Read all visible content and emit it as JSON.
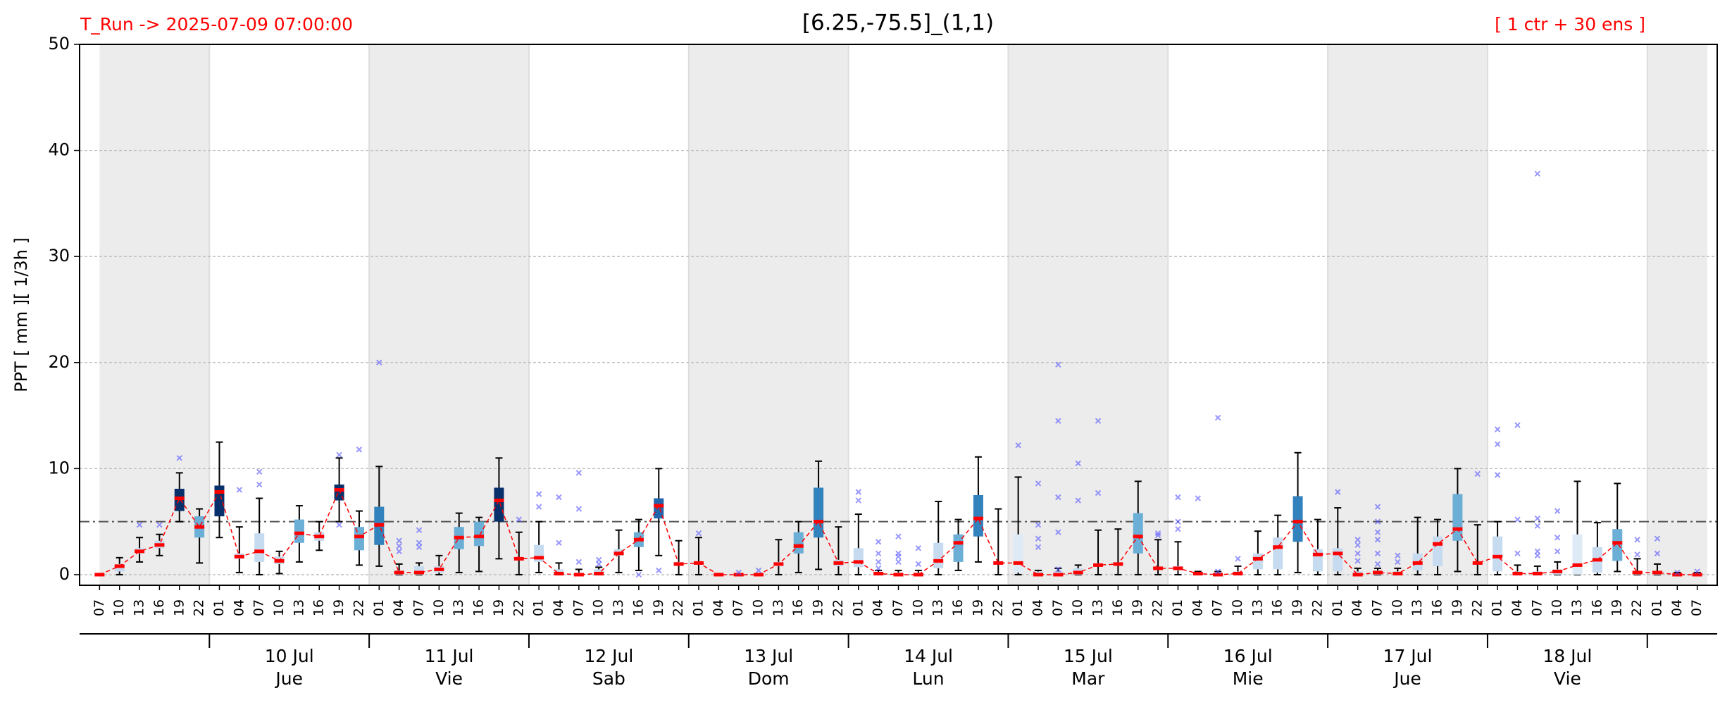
{
  "chart_data": {
    "type": "box",
    "title": "[6.25,-75.5]_(1,1)",
    "run_label": "T_Run -> 2025-07-09  07:00:00",
    "members_label": "[ 1 ctr + 30 ens ]",
    "ylabel": "PPT  [ mm ][ 1/3h ]",
    "ylim": [
      -1,
      50
    ],
    "yticks": [
      0,
      10,
      20,
      30,
      40,
      50
    ],
    "grid": true,
    "reference_line": 5,
    "categories": [
      "07",
      "10",
      "13",
      "16",
      "19",
      "22",
      "01",
      "04",
      "07",
      "10",
      "13",
      "16",
      "19",
      "22",
      "01",
      "04",
      "07",
      "10",
      "13",
      "16",
      "19",
      "22",
      "01",
      "04",
      "07",
      "10",
      "13",
      "16",
      "19",
      "22",
      "01",
      "04",
      "07",
      "10",
      "13",
      "16",
      "19",
      "22",
      "01",
      "04",
      "07",
      "10",
      "13",
      "16",
      "19",
      "22",
      "01",
      "04",
      "07",
      "10",
      "13",
      "16",
      "19",
      "22",
      "01",
      "04",
      "07",
      "10",
      "13",
      "16",
      "19",
      "22",
      "01",
      "04",
      "07",
      "10",
      "13",
      "16",
      "19",
      "22",
      "01",
      "04",
      "07",
      "10",
      "13",
      "16",
      "19",
      "22",
      "01",
      "04",
      "07"
    ],
    "days": [
      "10 Jul",
      "11 Jul",
      "12 Jul",
      "13 Jul",
      "14 Jul",
      "15 Jul",
      "16 Jul",
      "17 Jul",
      "18 Jul"
    ],
    "weekdays": [
      "Jue",
      "Vie",
      "Sab",
      "Dom",
      "Lun",
      "Mar",
      "Mie",
      "Jue",
      "Vie"
    ],
    "whisker_low": [
      0,
      0,
      1.2,
      1.8,
      5,
      1.1,
      3.5,
      0.2,
      0,
      0.1,
      1.2,
      2.3,
      5,
      0.9,
      0.8,
      0,
      0,
      0,
      0.2,
      0.3,
      1.5,
      0,
      0.2,
      0,
      0,
      0,
      0.2,
      0.4,
      1.8,
      0,
      0,
      0,
      0,
      0,
      0,
      0.2,
      0.5,
      0,
      0,
      0,
      0,
      0,
      0,
      0.4,
      1.2,
      0,
      0,
      0,
      0,
      0,
      0,
      0,
      0,
      0,
      0,
      0,
      0,
      0,
      0,
      0,
      0.2,
      0,
      0,
      0,
      0,
      0,
      0,
      0,
      0.3,
      0,
      0,
      0,
      0,
      0,
      0,
      0,
      0.3,
      0,
      0,
      0,
      0
    ],
    "q1": [
      0,
      0.3,
      2,
      2.5,
      6,
      3.5,
      5.5,
      1.5,
      1.2,
      1,
      3,
      3.2,
      7,
      2.3,
      2.8,
      0,
      0,
      0.2,
      2.4,
      2.7,
      5,
      1.4,
      1.2,
      0,
      0,
      0,
      1.8,
      2.6,
      5.3,
      0.9,
      1,
      0,
      0,
      0,
      0.8,
      2,
      3.5,
      0.8,
      0.7,
      0,
      0,
      0,
      0.6,
      1.2,
      3.6,
      1,
      0.2,
      0,
      0,
      0,
      0.8,
      0.9,
      2,
      0.5,
      0.4,
      0,
      0,
      0,
      0.5,
      0.5,
      3.1,
      0.3,
      0.3,
      0,
      0,
      0,
      0.4,
      0.8,
      3.2,
      1,
      0.3,
      0,
      0,
      0,
      0,
      0.2,
      1.3,
      0,
      0,
      0,
      0
    ],
    "q3": [
      0,
      1,
      2.5,
      3.2,
      8.1,
      5.5,
      8.4,
      2,
      3.9,
      1.7,
      5.2,
      4,
      8.5,
      4.5,
      6.4,
      0.4,
      0.8,
      0.8,
      4.5,
      5,
      8.2,
      1.6,
      2.8,
      0.5,
      0.2,
      0.5,
      2.4,
      4,
      7.2,
      1.2,
      1.2,
      0,
      0,
      0,
      1.2,
      4,
      8.2,
      1.4,
      2.5,
      0.2,
      0.2,
      0.2,
      3,
      3.8,
      7.5,
      1.2,
      3.8,
      0.3,
      0.3,
      0.6,
      1,
      1.1,
      5.8,
      0.7,
      0.8,
      0.2,
      0.2,
      0.3,
      2,
      3.5,
      7.4,
      2.4,
      2.5,
      0.3,
      0.4,
      0.3,
      2,
      3.6,
      7.6,
      1.2,
      3.6,
      0.3,
      0.3,
      0.5,
      3.8,
      2.6,
      4.3,
      0.3,
      0.2,
      0,
      0
    ],
    "whisker_high": [
      0.1,
      1.6,
      3.5,
      3.8,
      9.6,
      6.2,
      12.5,
      4.5,
      7.2,
      2.2,
      6.5,
      5,
      11,
      6,
      10.2,
      1,
      1.1,
      1.8,
      5.8,
      5.4,
      11,
      4,
      5,
      1.1,
      0.5,
      0.7,
      4.2,
      5.2,
      10,
      3.2,
      3.5,
      0.1,
      0.1,
      0.1,
      3.3,
      5,
      10.7,
      4.5,
      5.7,
      0.4,
      0.4,
      0.4,
      6.9,
      5.2,
      11.1,
      6.2,
      9.2,
      0.4,
      0.6,
      0.9,
      4.2,
      4.3,
      8.8,
      3.3,
      3.1,
      0.3,
      0.3,
      0.8,
      4.1,
      5.6,
      11.5,
      5.2,
      6.3,
      0.6,
      0.6,
      0.6,
      5.4,
      5.2,
      10,
      4.7,
      5,
      0.9,
      0.8,
      1.2,
      8.8,
      4.9,
      8.6,
      1.5,
      1,
      0.2,
      0.2
    ],
    "ctrl": [
      0,
      0.8,
      2.2,
      2.8,
      7.2,
      4.5,
      7.8,
      1.7,
      2.2,
      1.3,
      3.9,
      3.6,
      8,
      3.6,
      4.7,
      0.2,
      0.2,
      0.5,
      3.5,
      3.6,
      7,
      1.5,
      1.6,
      0.1,
      0,
      0.1,
      2,
      3.3,
      6.5,
      1,
      1.1,
      0,
      0,
      0,
      1,
      2.7,
      5,
      1.1,
      1.2,
      0.1,
      0,
      0,
      1.3,
      3,
      5.3,
      1.1,
      1.1,
      0,
      0,
      0.2,
      0.9,
      1,
      3.6,
      0.6,
      0.6,
      0.1,
      0,
      0.1,
      1.5,
      2.6,
      5,
      1.9,
      2,
      0,
      0.2,
      0.1,
      1.1,
      2.9,
      4.3,
      1.1,
      1.7,
      0.1,
      0.1,
      0.3,
      0.9,
      1.4,
      3,
      0.2,
      0.2,
      0,
      0
    ],
    "ctrl_color": "#ff0000",
    "box_colors": [
      "#c6dbef",
      "#c6dbef",
      "#c6dbef",
      "#c6dbef",
      "#08306b",
      "#6baed6",
      "#08306b",
      "#c6dbef",
      "#c6dbef",
      "#c6dbef",
      "#6baed6",
      "#c6dbef",
      "#08306b",
      "#6baed6",
      "#3182bd",
      "#c6dbef",
      "#c6dbef",
      "#c6dbef",
      "#6baed6",
      "#6baed6",
      "#08306b",
      "#c6dbef",
      "#c6dbef",
      "#c6dbef",
      "#c6dbef",
      "#c6dbef",
      "#c6dbef",
      "#6baed6",
      "#2166ac",
      "#c6dbef",
      "#c6dbef",
      "#c6dbef",
      "#c6dbef",
      "#c6dbef",
      "#c6dbef",
      "#6baed6",
      "#3182bd",
      "#c6dbef",
      "#c6dbef",
      "#c6dbef",
      "#c6dbef",
      "#c6dbef",
      "#c6dbef",
      "#6baed6",
      "#3182bd",
      "#c6dbef",
      "#deebf7",
      "#c6dbef",
      "#c6dbef",
      "#c6dbef",
      "#c6dbef",
      "#c6dbef",
      "#6baed6",
      "#c6dbef",
      "#c6dbef",
      "#c6dbef",
      "#c6dbef",
      "#c6dbef",
      "#c6dbef",
      "#c6dbef",
      "#3182bd",
      "#c6dbef",
      "#c6dbef",
      "#c6dbef",
      "#c6dbef",
      "#c6dbef",
      "#c6dbef",
      "#c6dbef",
      "#6baed6",
      "#c6dbef",
      "#c6dbef",
      "#c6dbef",
      "#c6dbef",
      "#c6dbef",
      "#deebf7",
      "#c6dbef",
      "#6baed6",
      "#c6dbef",
      "#c6dbef",
      "#c6dbef",
      "#c6dbef"
    ],
    "outliers": {
      "color": "#5555ff",
      "x": [
        2,
        3,
        4,
        7,
        8,
        8,
        12,
        12,
        13,
        14,
        15,
        15,
        15,
        16,
        16,
        16,
        21,
        22,
        22,
        23,
        23,
        24,
        24,
        24,
        25,
        25,
        27,
        28,
        30,
        32,
        33,
        38,
        38,
        39,
        39,
        39,
        39,
        40,
        40,
        40,
        40,
        41,
        41,
        46,
        47,
        47,
        47,
        47,
        48,
        48,
        48,
        48,
        48,
        49,
        49,
        50,
        50,
        53,
        53,
        54,
        54,
        54,
        55,
        56,
        56,
        57,
        62,
        63,
        63,
        63,
        63,
        64,
        64,
        64,
        64,
        64,
        64,
        65,
        65,
        69,
        70,
        70,
        70,
        71,
        71,
        71,
        72,
        72,
        72,
        72,
        72,
        73,
        73,
        73,
        77,
        77,
        78,
        78,
        79,
        80
      ],
      "y": [
        4.7,
        4.7,
        11,
        8,
        8.5,
        9.7,
        11.3,
        4.7,
        11.8,
        20,
        2.2,
        2.7,
        3.2,
        2.6,
        3,
        4.2,
        5.2,
        6.4,
        7.6,
        3,
        7.3,
        1.2,
        6.2,
        9.6,
        1,
        1.4,
        0,
        0.4,
        3.9,
        0.2,
        0.4,
        7,
        7.8,
        0.6,
        1.2,
        2,
        3.1,
        1.2,
        1.7,
        2,
        3.6,
        1,
        2.5,
        12.2,
        2.6,
        3.4,
        4.7,
        8.6,
        0.5,
        4,
        7.3,
        14.5,
        19.8,
        7,
        10.5,
        7.7,
        14.5,
        3.7,
        3.9,
        4.3,
        5,
        7.3,
        7.2,
        0.3,
        14.8,
        1.5,
        7.8,
        1.3,
        2,
        2.8,
        3.3,
        1,
        2,
        3.3,
        4,
        5,
        6.4,
        1.2,
        1.8,
        9.5,
        9.4,
        12.3,
        13.7,
        2,
        5.2,
        14.1,
        1.8,
        2.2,
        4.6,
        5.3,
        37.8,
        2.2,
        3.5,
        6,
        1.9,
        3.3,
        2,
        3.4,
        0.2,
        0.3
      ]
    }
  }
}
